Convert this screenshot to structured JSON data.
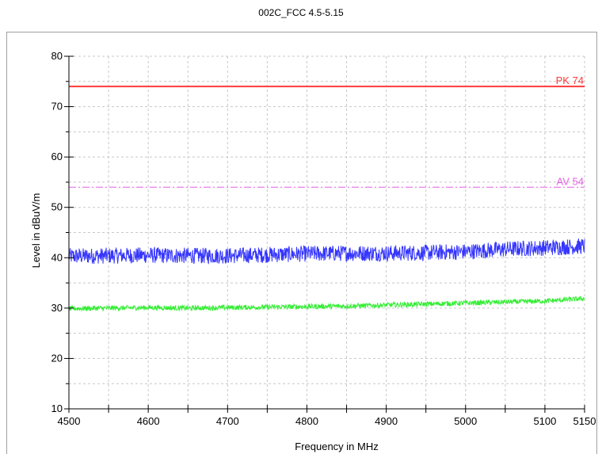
{
  "page_title": "002C_FCC 4.5-5.15",
  "chart_data": {
    "type": "line",
    "title": "002C_FCC 4.5-5.15",
    "xlabel": "Frequency in MHz",
    "ylabel": "Level in dBuV/m",
    "xlim": [
      4500,
      5150
    ],
    "ylim": [
      10,
      80
    ],
    "x_ticks": [
      4500,
      4600,
      4700,
      4800,
      4900,
      5000,
      5100,
      5150
    ],
    "x_tick_labels": [
      "4500",
      "4600",
      "4700",
      "4800",
      "4900",
      "5000",
      "5100",
      "5150"
    ],
    "y_ticks": [
      10,
      20,
      30,
      40,
      50,
      60,
      70,
      80
    ],
    "y_tick_labels": [
      "10",
      "20",
      "30",
      "40",
      "50",
      "60",
      "70",
      "80"
    ],
    "grid": true,
    "limit_lines": [
      {
        "label": "PK 74",
        "value": 74,
        "color": "#ff3b3b",
        "style": "solid"
      },
      {
        "label": "AV 54",
        "value": 54,
        "color": "#e45fe4",
        "style": "dashdot"
      }
    ],
    "series": [
      {
        "color": "#3535ff",
        "noise": 1.6,
        "x": [
          4500,
          4550,
          4600,
          4650,
          4700,
          4750,
          4800,
          4850,
          4900,
          4950,
          5000,
          5050,
          5100,
          5150
        ],
        "y": [
          40.3,
          40.4,
          40.5,
          40.4,
          40.4,
          40.6,
          40.8,
          40.9,
          40.9,
          41.0,
          41.2,
          41.7,
          42.0,
          42.3
        ]
      },
      {
        "color": "#33ee33",
        "noise": 0.5,
        "x": [
          4500,
          4550,
          4600,
          4650,
          4700,
          4750,
          4800,
          4850,
          4900,
          4950,
          5000,
          5050,
          5100,
          5150
        ],
        "y": [
          29.9,
          30.0,
          30.1,
          30.0,
          30.1,
          30.2,
          30.3,
          30.4,
          30.6,
          30.8,
          31.0,
          31.2,
          31.4,
          31.9
        ]
      }
    ]
  }
}
